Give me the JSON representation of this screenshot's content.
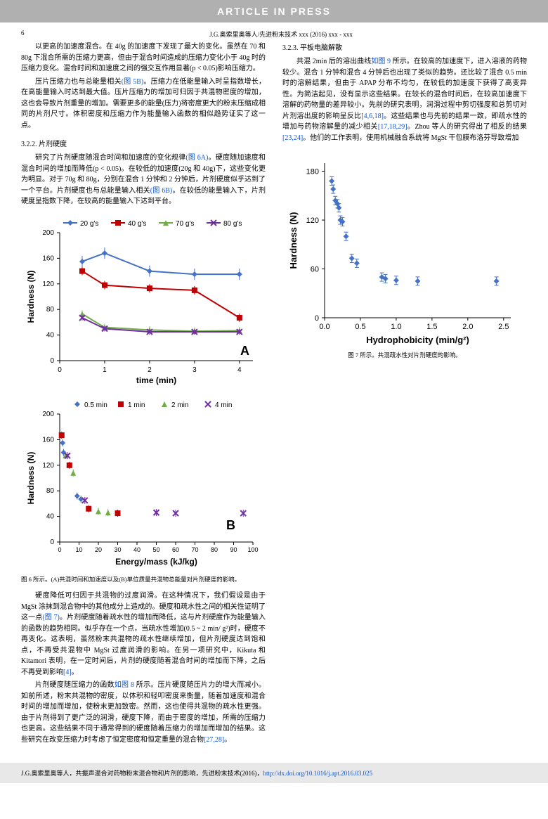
{
  "banner": "ARTICLE  IN  PRESS",
  "page_number": "6",
  "running_head": "J.G.奥索里奥等人/先进粉末技术 xxx (2016) xxx - xxx",
  "col1": {
    "p1": "以更高的加速度混合。在 40g 的加速度下发现了最大的变化。虽然在 70 和 80g 下混合所需的压缩力更高，但由于混合时间造成的压缩力变化小于 40g 时的压缩力变化。混合时间和加速度之间的强交互作用显著(p < 0.05)影响压缩力。",
    "p2_a": "压片压缩力也与总能量相关",
    "p2_link": "(图 5B)",
    "p2_b": "。压缩力在低能量输入时呈指数增长，在高能量输入时达到最大值。压片压缩力的增加可归因于共混物密度的增加，这也会导致片剂重量的增加。需要更多的能量(压力)将密度更大的粉末压缩成相同的片剂尺寸。体积密度和压缩力作为能量输入函数的相似趋势证实了这一点。",
    "sec_hardness": "3.2.2. 片剂硬度",
    "p3_a": "研究了片剂硬度随混合时间和加速度的变化规律",
    "p3_link1": "(图 6A)",
    "p3_b": "。硬度随加速度和混合时间的增加而降低(p < 0.05)。在较低的加速度(20g 和 40g)下，这些变化更为明显。对于 70g 和 80g，分别在混合 1 分钟和 2 分钟后，片剂硬度似乎达到了一个平台。片剂硬度也与总能量输入相关",
    "p3_link2": "(图 6B)",
    "p3_c": "。在较低的能量输入下，片剂硬度呈指数下降，在较高的能量输入下达到平台。",
    "fig6_caption": "图 6 所示。(A)共混时间和加速度以及(B)单位质量共混物总能量对片剂硬度的影响。"
  },
  "col2": {
    "p1_a": "硬度降低可归因于共混物的过度润滑。在这种情况下，我们假设是由于 MgSt 涂抹到混合物中的其他成分上造成的。硬度和疏水性之间的相关性证明了这一点",
    "p1_link": "(图 7)",
    "p1_b": "。片剂硬度随着疏水性的增加而降低，这与片剂硬度作为能量输入的函数的趋势相同。似乎存在一个点，当疏水性增加(0.5 ~ 2 min/ g²)时，硬度不再变化。这表明，虽然粉末共混物的疏水性继续增加，但片剂硬度达到饱和点，不再受共混物中 MgSt 过度润滑的影响。在另一项研究中，Kikuta 和 Kitamori 表明，在一定时间后，片剂的硬度随着混合时间的增加而下降，之后不再受到影响",
    "p1_cite": "[4]",
    "p1_c": "。",
    "p2_a": "片剂硬度随压缩力的函数",
    "p2_link": "如图 8",
    "p2_b": " 所示。压片硬度随压片力的增大而减小。如前所述，粉末共混物的密度，以体积和轻叩密度来衡量，随着加速度和混合时间的增加而增加，使粉末更加致密。然而，这也使得共混物的疏水性更强。由于片剂得到了更广泛的润滑，硬度下降，而由于密度的增加，所需的压缩力也更高。这些结果不同于通常得到的硬度随着压缩力的增加而增加的结果。这些研究在改变压缩力时考虑了恒定密度和恒定重量的混合物",
    "p2_cite": "[27,28]",
    "p2_c": "。",
    "sec_diss": "3.2.3. 平板电脑解散",
    "p3_a": "共混 2min 后的溶出曲线",
    "p3_link": "如图 9",
    "p3_b": " 所示。在较高的加速度下，进入溶液的药物较少。混合 1 分钟和混合 4 分钟后也出现了类似的趋势。还比较了混合 0.5 min 时的溶解结果，但由于 APAP 分布不均匀，在较低的加速度下获得了高变异性。为简洁起见，没有显示这些结果。在较长的混合时间后，在较高加速度下溶解的药物量的差异较小。先前的研究表明，润滑过程中剪切强度和总剪切对片剂溶出度的影响呈反比",
    "p3_cite1": "[4,6,18]",
    "p3_c": "。这些结果也与先前的结果一致，即疏水性的增加与药物溶解量的减少相关",
    "p3_cite2": "[17,18,29]",
    "p3_d": "。Zhou 等人的研究得出了相反的结果",
    "p3_cite3": "[23,24]",
    "p3_e": "。他们的工作表明，使用机械融合系统将 MgSt 干包膜布洛芬导致增加",
    "fig7_caption": "图 7 所示。共混疏水性对片剂硬度的影响。"
  },
  "chartA": {
    "title_type": "line",
    "x_label": "time (min)",
    "y_label": "Hardness (N)",
    "x_ticks": [
      0,
      1,
      2,
      3,
      4
    ],
    "y_ticks": [
      0,
      40,
      80,
      120,
      160,
      200
    ],
    "xlim": [
      0,
      4.3
    ],
    "ylim": [
      0,
      200
    ],
    "legend": [
      {
        "label": "20 g's",
        "color": "#4472c4",
        "marker": "diamond"
      },
      {
        "label": "40 g's",
        "color": "#c00000",
        "marker": "square"
      },
      {
        "label": "70 g's",
        "color": "#70ad47",
        "marker": "triangle"
      },
      {
        "label": "80 g's",
        "color": "#7030a0",
        "marker": "x"
      }
    ],
    "series": {
      "s20": {
        "color": "#4472c4",
        "pts": [
          [
            0.5,
            155
          ],
          [
            1,
            168
          ],
          [
            2,
            140
          ],
          [
            3,
            135
          ],
          [
            4,
            135
          ]
        ],
        "err": 8
      },
      "s40": {
        "color": "#c00000",
        "pts": [
          [
            0.5,
            140
          ],
          [
            1,
            118
          ],
          [
            2,
            113
          ],
          [
            3,
            110
          ],
          [
            4,
            67
          ]
        ],
        "err": 6
      },
      "s70": {
        "color": "#70ad47",
        "pts": [
          [
            0.5,
            73
          ],
          [
            1,
            52
          ],
          [
            2,
            48
          ],
          [
            3,
            46
          ],
          [
            4,
            47
          ]
        ],
        "err": 5
      },
      "s80": {
        "color": "#7030a0",
        "pts": [
          [
            0.5,
            67
          ],
          [
            1,
            50
          ],
          [
            2,
            45
          ],
          [
            3,
            45
          ],
          [
            4,
            45
          ]
        ],
        "err": 4
      }
    },
    "panel_label": "A",
    "font_axis": 11,
    "font_tick": 10
  },
  "chartB": {
    "x_label": "Energy/mass (kJ/kg)",
    "y_label": "Hardness (N)",
    "x_ticks": [
      0,
      10,
      20,
      30,
      40,
      50,
      60,
      70,
      80,
      90,
      100
    ],
    "y_ticks": [
      0,
      40,
      80,
      120,
      160,
      200
    ],
    "xlim": [
      0,
      100
    ],
    "ylim": [
      0,
      200
    ],
    "legend": [
      {
        "label": "0.5 min",
        "color": "#4472c4",
        "marker": "diamond"
      },
      {
        "label": "1 min",
        "color": "#c00000",
        "marker": "square"
      },
      {
        "label": "2 min",
        "color": "#70ad47",
        "marker": "triangle"
      },
      {
        "label": "4 min",
        "color": "#7030a0",
        "marker": "x"
      }
    ],
    "points": [
      {
        "x": 1,
        "y": 167,
        "c": "#c00000",
        "m": "square"
      },
      {
        "x": 1.5,
        "y": 155,
        "c": "#4472c4",
        "m": "diamond"
      },
      {
        "x": 2,
        "y": 140,
        "c": "#4472c4",
        "m": "diamond"
      },
      {
        "x": 3,
        "y": 135,
        "c": "#70ad47",
        "m": "triangle"
      },
      {
        "x": 4,
        "y": 135,
        "c": "#7030a0",
        "m": "x"
      },
      {
        "x": 5,
        "y": 120,
        "c": "#c00000",
        "m": "square"
      },
      {
        "x": 7,
        "y": 108,
        "c": "#70ad47",
        "m": "triangle"
      },
      {
        "x": 9,
        "y": 72,
        "c": "#4472c4",
        "m": "diamond"
      },
      {
        "x": 11,
        "y": 67,
        "c": "#4472c4",
        "m": "diamond"
      },
      {
        "x": 13,
        "y": 65,
        "c": "#7030a0",
        "m": "x"
      },
      {
        "x": 15,
        "y": 52,
        "c": "#c00000",
        "m": "square"
      },
      {
        "x": 20,
        "y": 48,
        "c": "#70ad47",
        "m": "triangle"
      },
      {
        "x": 25,
        "y": 46,
        "c": "#70ad47",
        "m": "triangle"
      },
      {
        "x": 30,
        "y": 45,
        "c": "#c00000",
        "m": "square"
      },
      {
        "x": 50,
        "y": 46,
        "c": "#7030a0",
        "m": "x"
      },
      {
        "x": 60,
        "y": 45,
        "c": "#7030a0",
        "m": "x"
      },
      {
        "x": 95,
        "y": 45,
        "c": "#7030a0",
        "m": "x"
      }
    ],
    "panel_label": "B"
  },
  "chart7": {
    "x_label": "Hydrophobicity  (min/g²)",
    "y_label": "Hardness  (N)",
    "x_ticks": [
      0.0,
      0.5,
      1.0,
      1.5,
      2.0,
      2.5
    ],
    "y_ticks": [
      0,
      60,
      120,
      180
    ],
    "xlim": [
      0,
      2.6
    ],
    "ylim": [
      0,
      190
    ],
    "color": "#4472c4",
    "points": [
      {
        "x": 0.1,
        "y": 168
      },
      {
        "x": 0.12,
        "y": 158
      },
      {
        "x": 0.15,
        "y": 144
      },
      {
        "x": 0.18,
        "y": 140
      },
      {
        "x": 0.2,
        "y": 135
      },
      {
        "x": 0.22,
        "y": 120
      },
      {
        "x": 0.25,
        "y": 118
      },
      {
        "x": 0.3,
        "y": 100
      },
      {
        "x": 0.38,
        "y": 73
      },
      {
        "x": 0.45,
        "y": 67
      },
      {
        "x": 0.8,
        "y": 50
      },
      {
        "x": 0.85,
        "y": 48
      },
      {
        "x": 1.0,
        "y": 46
      },
      {
        "x": 1.3,
        "y": 45
      },
      {
        "x": 2.4,
        "y": 45
      }
    ],
    "err": 6
  },
  "footer_a": "J.G.奥索里奥等人，共振声混合对药物粉末混合物和片剂的影响，先进粉末技术(2016)，",
  "footer_link": "http://dx.doi.org/10.1016/j.apt.2016.03.025"
}
